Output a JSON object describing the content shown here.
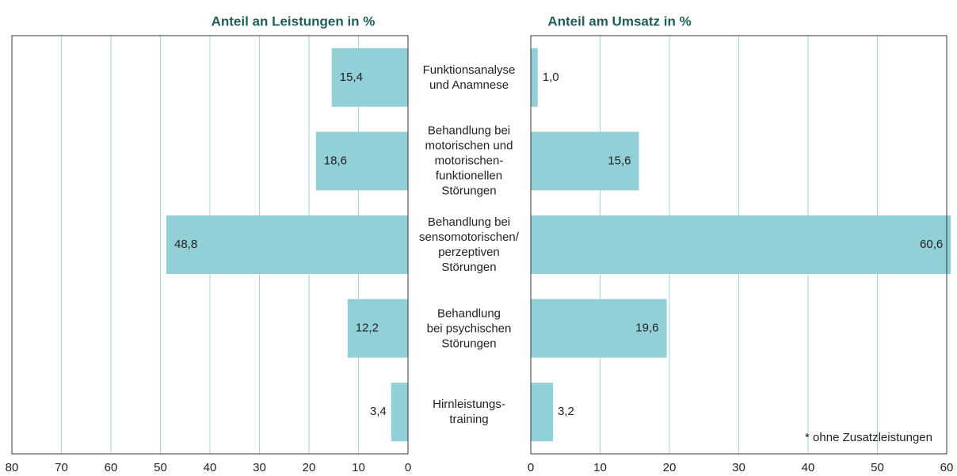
{
  "chart_data": [
    {
      "type": "hbar",
      "title": "Anteil an Leistungen in %",
      "categories": [
        "Funktionsanalyse\nund Anamnese",
        "Behandlung bei\nmotorischen und\nmotorischen-\nfunktionellen\nStörungen",
        "Behandlung bei\nsensomotorischen/\nperzeptiven\nStörungen",
        "Behandlung\nbei psychischen\nStörungen",
        "Hirnleistungs-\ntraining"
      ],
      "values": [
        15.4,
        18.6,
        48.8,
        12.2,
        3.4
      ],
      "value_labels": [
        "15,4",
        "18,6",
        "48,8",
        "12,2",
        "3,4"
      ],
      "color": "#92d0d8",
      "reversed": true,
      "xlim": [
        0,
        80
      ],
      "xticks": [
        80,
        70,
        60,
        50,
        40,
        30,
        20,
        10,
        0
      ],
      "grid": true
    },
    {
      "type": "hbar",
      "title": "Anteil am Umsatz in %",
      "values": [
        1.0,
        15.6,
        60.6,
        19.6,
        3.2
      ],
      "value_labels": [
        "1,0",
        "15,6",
        "60,6",
        "19,6",
        "3,2"
      ],
      "color": "#92d0d8",
      "reversed": false,
      "xlim": [
        0,
        60
      ],
      "xticks": [
        0,
        10,
        20,
        30,
        40,
        50,
        60
      ],
      "grid": true,
      "annotation": "* ohne Zusatzleistungen"
    }
  ]
}
